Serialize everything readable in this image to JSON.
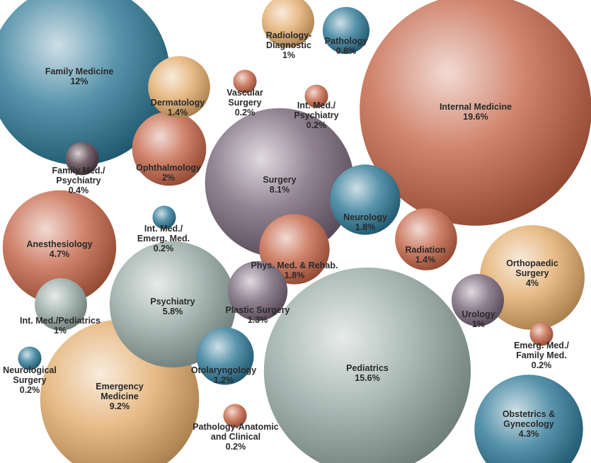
{
  "chart_data": {
    "type": "bubble",
    "title": "",
    "unit": "%",
    "bubbles": [
      {
        "name": "Family Medicine",
        "label_lines": [
          "Family Medicine"
        ],
        "value": 12,
        "value_label": "12%",
        "color": "#1f6f8f"
      },
      {
        "name": "Internal Medicine",
        "label_lines": [
          "Internal Medicine"
        ],
        "value": 19.6,
        "value_label": "19.6%",
        "color": "#c0593a"
      },
      {
        "name": "Pediatrics",
        "label_lines": [
          "Pediatrics"
        ],
        "value": 15.6,
        "value_label": "15.6%",
        "color": "#8fa39d"
      },
      {
        "name": "Emergency Medicine",
        "label_lines": [
          "Emergency",
          "Medicine"
        ],
        "value": 9.2,
        "value_label": "9.2%",
        "color": "#e0a560"
      },
      {
        "name": "Surgery",
        "label_lines": [
          "Surgery"
        ],
        "value": 8.1,
        "value_label": "8.1%",
        "color": "#6e5a6e"
      },
      {
        "name": "Psychiatry",
        "label_lines": [
          "Psychiatry"
        ],
        "value": 5.8,
        "value_label": "5.8%",
        "color": "#8fa39d"
      },
      {
        "name": "Anesthesiology",
        "label_lines": [
          "Anesthesiology"
        ],
        "value": 4.7,
        "value_label": "4.7%",
        "color": "#c0593a"
      },
      {
        "name": "Obstetrics & Gynecology",
        "label_lines": [
          "Obstetrics &",
          "Gynecology"
        ],
        "value": 4.3,
        "value_label": "4.3%",
        "color": "#1f6f8f"
      },
      {
        "name": "Orthopaedic Surgery",
        "label_lines": [
          "Orthopaedic",
          "Surgery"
        ],
        "value": 4,
        "value_label": "4%",
        "color": "#e0a560"
      },
      {
        "name": "Ophthalmology",
        "label_lines": [
          "Ophthalmology"
        ],
        "value": 2,
        "value_label": "2%",
        "color": "#c0593a"
      },
      {
        "name": "Neurology",
        "label_lines": [
          "Neurology"
        ],
        "value": 1.8,
        "value_label": "1.8%",
        "color": "#1f6f8f"
      },
      {
        "name": "Phys. Med. & Rehab.",
        "label_lines": [
          "Phys. Med. & Rehab."
        ],
        "value": 1.8,
        "value_label": "1.8%",
        "color": "#c0593a"
      },
      {
        "name": "Dermatology",
        "label_lines": [
          "Dermatology"
        ],
        "value": 1.4,
        "value_label": "1.4%",
        "color": "#e0a560"
      },
      {
        "name": "Radiation",
        "label_lines": [
          "Radiation"
        ],
        "value": 1.4,
        "value_label": "1.4%",
        "color": "#c0593a"
      },
      {
        "name": "Plastic Surgery",
        "label_lines": [
          "Plastic Surgery"
        ],
        "value": 1.3,
        "value_label": "1.3%",
        "color": "#6e5a6e"
      },
      {
        "name": "Otolaryngology",
        "label_lines": [
          "Otolaryngology"
        ],
        "value": 1.2,
        "value_label": "1.2%",
        "color": "#1f6f8f"
      },
      {
        "name": "Radiology-Diagnostic",
        "label_lines": [
          "Radiology-",
          "Diagnostic"
        ],
        "value": 1,
        "value_label": "1%",
        "color": "#e0a560"
      },
      {
        "name": "Int. Med./Pediatrics",
        "label_lines": [
          "Int. Med./Pediatrics"
        ],
        "value": 1,
        "value_label": "1%",
        "color": "#8fa39d"
      },
      {
        "name": "Urology",
        "label_lines": [
          "Urology"
        ],
        "value": 1,
        "value_label": "1%",
        "color": "#6e5a6e"
      },
      {
        "name": "Pathology",
        "label_lines": [
          "Pathology"
        ],
        "value": 0.8,
        "value_label": "0.8%",
        "color": "#1f6f8f"
      },
      {
        "name": "Family Med./Psychiatry",
        "label_lines": [
          "Family Med./",
          "Psychiatry"
        ],
        "value": 0.4,
        "value_label": "0.4%",
        "color": "#4a2f3a"
      },
      {
        "name": "Vascular Surgery",
        "label_lines": [
          "Vascular",
          "Surgery"
        ],
        "value": 0.2,
        "value_label": "0.2%",
        "color": "#c0593a"
      },
      {
        "name": "Int. Med./Psychiatry",
        "label_lines": [
          "Int. Med./",
          "Psychiatry"
        ],
        "value": 0.2,
        "value_label": "0.2%",
        "color": "#c0593a"
      },
      {
        "name": "Int. Med./Emerg. Med.",
        "label_lines": [
          "Int. Med./",
          "Emerg. Med."
        ],
        "value": 0.2,
        "value_label": "0.2%",
        "color": "#1f6f8f"
      },
      {
        "name": "Neurological Surgery",
        "label_lines": [
          "Neurological",
          "Surgery"
        ],
        "value": 0.2,
        "value_label": "0.2%",
        "color": "#1f6f8f"
      },
      {
        "name": "Pathology-Anatomic and Clinical",
        "label_lines": [
          "Pathology-Anatomic",
          "and Clinical"
        ],
        "value": 0.2,
        "value_label": "0.2%",
        "color": "#c0593a"
      },
      {
        "name": "Emerg. Med./Family Med.",
        "label_lines": [
          "Emerg. Med./",
          "Family Med."
        ],
        "value": 0.2,
        "value_label": "0.2%",
        "color": "#c0593a"
      }
    ]
  }
}
